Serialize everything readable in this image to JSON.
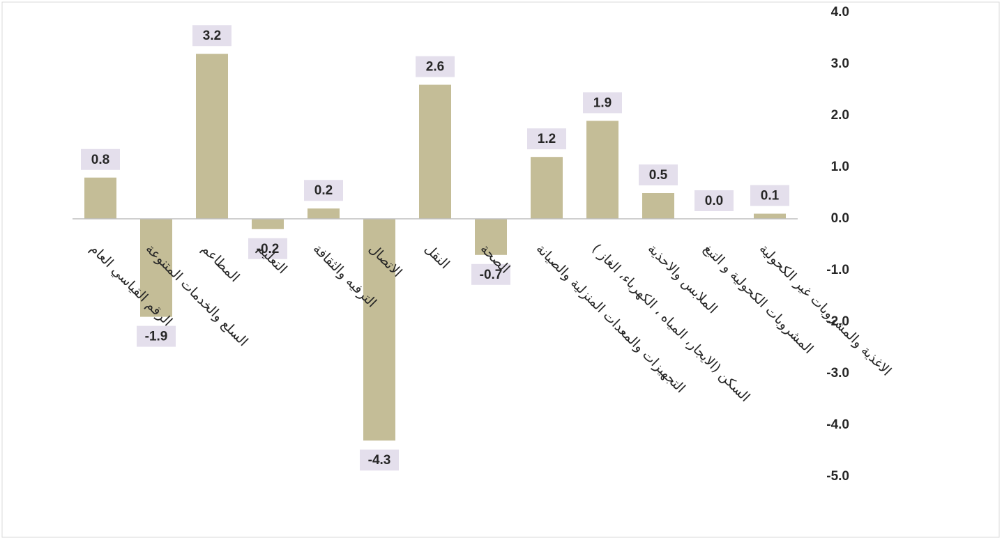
{
  "chart_data": {
    "type": "bar",
    "categories": [
      "الرقم القياسي العام",
      "السلع والخدمات المتنوعة",
      "المطاعم",
      "التعليم",
      "الترفيه والثقافة",
      "الاتصال",
      "النقل",
      "الصحة",
      "التجهيزات والمعدات المنزلية والصيانة",
      "السكن (الايجار، المياه ، الكهرباء، الغاز )",
      "الملابس والاحذية",
      "المشروبات الكحولية و التبغ",
      "الاغذية والمشروبات غير الكحولية"
    ],
    "values": [
      0.8,
      -1.9,
      3.2,
      -0.2,
      0.2,
      -4.3,
      2.6,
      -0.7,
      1.2,
      1.9,
      0.5,
      0.0,
      0.1
    ],
    "value_labels": [
      "0.8",
      "-1.9",
      "3.2",
      "-0.2",
      "0.2",
      "-4.3",
      "2.6",
      "-0.7",
      "1.2",
      "1.9",
      "0.5",
      "0.0",
      "0.1"
    ],
    "color": "#c4bd97",
    "ylim": [
      -5,
      4
    ],
    "yticks": [
      {
        "value": 4,
        "label": "4.0"
      },
      {
        "value": 3,
        "label": "3.0"
      },
      {
        "value": 2,
        "label": "2.0"
      },
      {
        "value": 1,
        "label": "1.0"
      },
      {
        "value": 0,
        "label": "0.0"
      },
      {
        "value": -1,
        "label": "-1.0"
      },
      {
        "value": -2,
        "label": "-2.0"
      },
      {
        "value": -3,
        "label": "-3.0"
      },
      {
        "value": -4,
        "label": "-4.0"
      },
      {
        "value": -5,
        "label": "-5.0"
      }
    ],
    "grid": false
  }
}
